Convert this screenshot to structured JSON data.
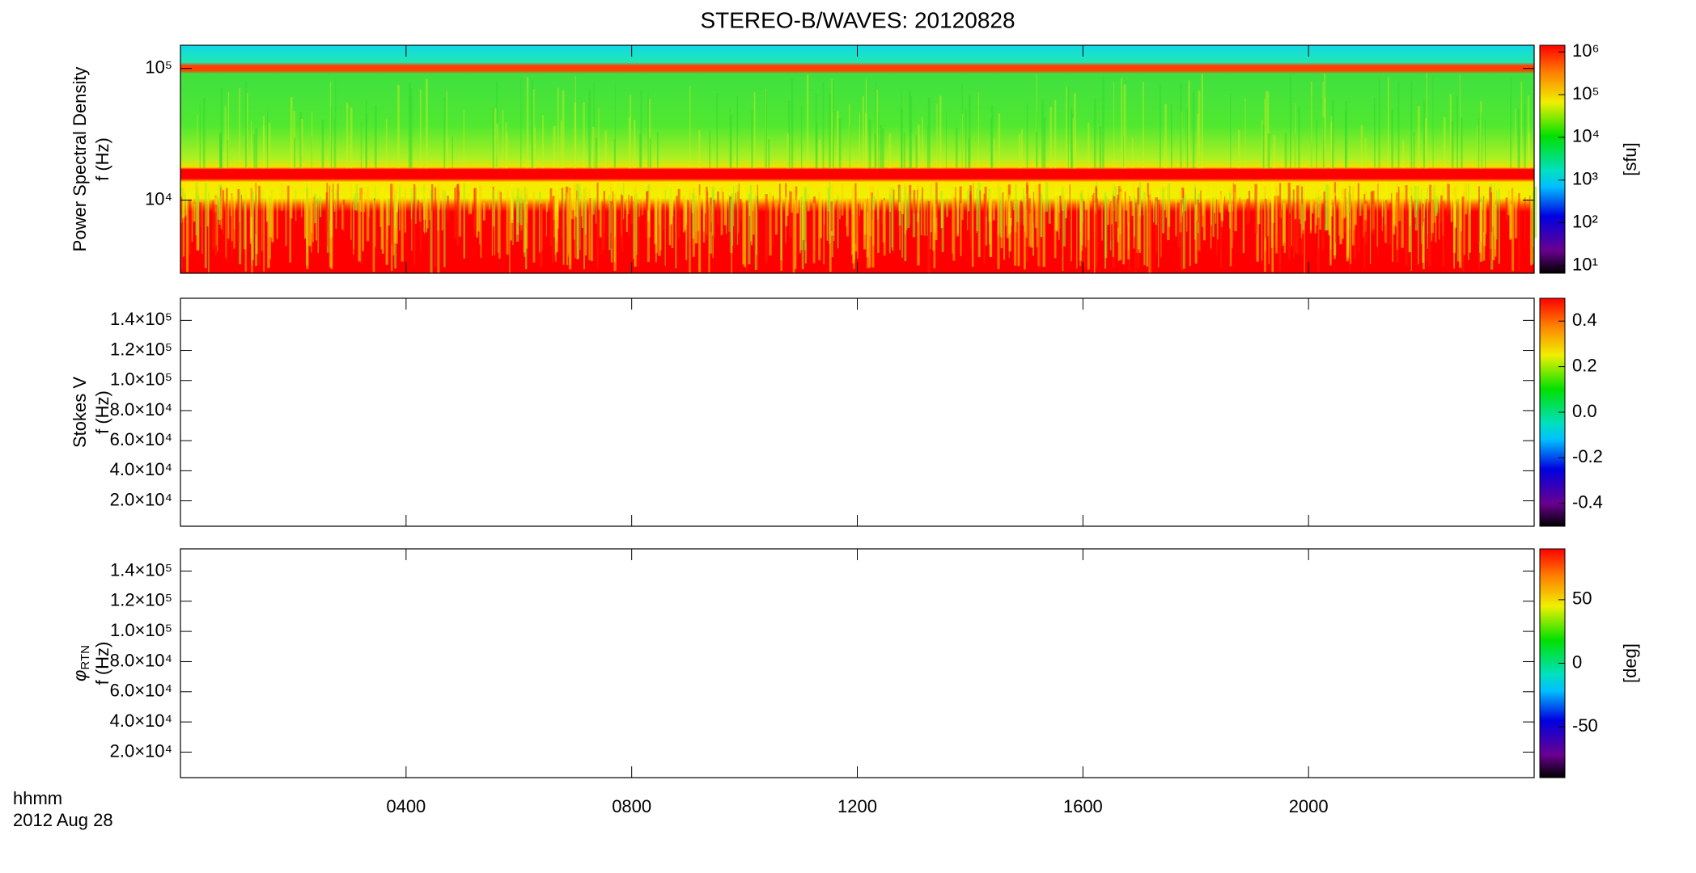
{
  "chart_data": [
    {
      "type": "heatmap",
      "title": "STEREO-B/WAVES: 20120828",
      "ylabel": [
        "Power Spectral Density",
        "f (Hz)"
      ],
      "yscale": "log",
      "xlim": [
        0,
        24
      ],
      "ylim": [
        2790,
        150000
      ],
      "yticks": [
        {
          "value": 10000,
          "label": "10⁴"
        },
        {
          "value": 100000,
          "label": "10⁵"
        }
      ],
      "colorbar": {
        "scale": "log",
        "clim": [
          6.6,
          1430000
        ],
        "label": "[sfu]",
        "ticks": [
          {
            "value": 10,
            "label": "10¹"
          },
          {
            "value": 100,
            "label": "10²"
          },
          {
            "value": 1000,
            "label": "10³"
          },
          {
            "value": 10000,
            "label": "10⁴"
          },
          {
            "value": 100000,
            "label": "10⁵"
          },
          {
            "value": 1000000,
            "label": "10⁶"
          }
        ]
      }
    },
    {
      "type": "heatmap",
      "ylabel": [
        "Stokes V",
        "f (Hz)"
      ],
      "yscale": "linear",
      "xlim": [
        0,
        24
      ],
      "ylim": [
        3100,
        154700
      ],
      "yticks": [
        {
          "value": 20000,
          "label": "2.0×10⁴"
        },
        {
          "value": 40000,
          "label": "4.0×10⁴"
        },
        {
          "value": 60000,
          "label": "6.0×10⁴"
        },
        {
          "value": 80000,
          "label": "8.0×10⁴"
        },
        {
          "value": 100000,
          "label": "1.0×10⁵"
        },
        {
          "value": 120000,
          "label": "1.2×10⁵"
        },
        {
          "value": 140000,
          "label": "1.4×10⁵"
        }
      ],
      "colorbar": {
        "scale": "linear",
        "clim": [
          -0.5,
          0.5
        ],
        "ticks": [
          {
            "value": -0.4,
            "label": "-0.4"
          },
          {
            "value": -0.2,
            "label": "-0.2"
          },
          {
            "value": 0,
            "label": "0.0"
          },
          {
            "value": 0.2,
            "label": "0.2"
          },
          {
            "value": 0.4,
            "label": "0.4"
          }
        ]
      }
    },
    {
      "type": "heatmap",
      "ylabel": [
        {
          "text": "φ",
          "sub": "RTN"
        },
        "f (Hz)"
      ],
      "yscale": "linear",
      "xlim": [
        0,
        24
      ],
      "ylim": [
        3100,
        154700
      ],
      "yticks": [
        {
          "value": 20000,
          "label": "2.0×10⁴"
        },
        {
          "value": 40000,
          "label": "4.0×10⁴"
        },
        {
          "value": 60000,
          "label": "6.0×10⁴"
        },
        {
          "value": 80000,
          "label": "8.0×10⁴"
        },
        {
          "value": 100000,
          "label": "1.0×10⁵"
        },
        {
          "value": 120000,
          "label": "1.2×10⁵"
        },
        {
          "value": 140000,
          "label": "1.4×10⁵"
        }
      ],
      "colorbar": {
        "scale": "linear",
        "clim": [
          -90,
          90
        ],
        "label": "[deg]",
        "ticks": [
          -50,
          0,
          50
        ]
      },
      "xlabel": [
        "hhmm",
        "2012 Aug 28"
      ],
      "xticks": [
        {
          "value": 4,
          "label": "0400"
        },
        {
          "value": 8,
          "label": "0800"
        },
        {
          "value": 12,
          "label": "1200"
        },
        {
          "value": 16,
          "label": "1600"
        },
        {
          "value": 20,
          "label": "2000"
        }
      ]
    }
  ]
}
